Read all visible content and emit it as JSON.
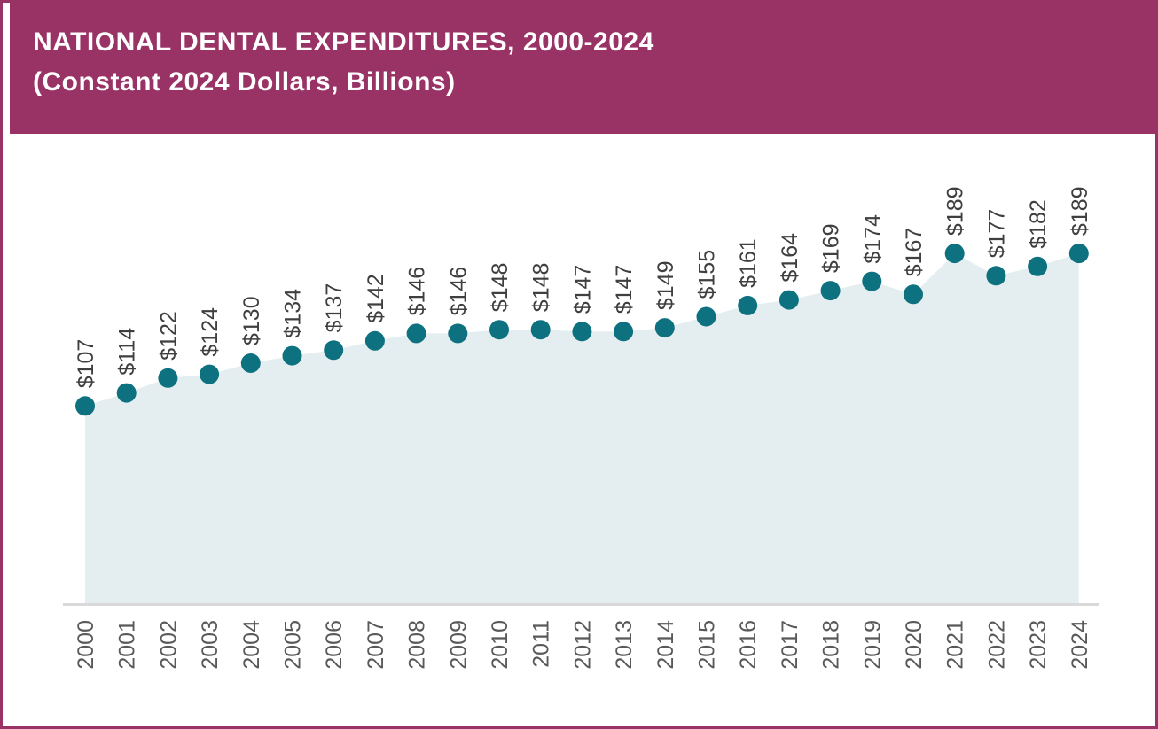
{
  "header": {
    "title_line1": "NATIONAL DENTAL EXPENDITURES, 2000-2024",
    "title_line2": "(Constant 2024 Dollars, Billions)"
  },
  "colors": {
    "maroon": "#993365",
    "dot_teal": "#0d7180",
    "area_fill": "#e4eef0",
    "axis_line": "#d9d9d9",
    "value_label_text": "#3f3f3f",
    "year_label_text": "#595959",
    "title_text": "#ffffff"
  },
  "chart_data": {
    "type": "area",
    "title": "NATIONAL DENTAL EXPENDITURES, 2000-2024",
    "subtitle": "(Constant 2024 Dollars, Billions)",
    "xlabel": "",
    "ylabel": "",
    "categories": [
      "2000",
      "2001",
      "2002",
      "2003",
      "2004",
      "2005",
      "2006",
      "2007",
      "2008",
      "2009",
      "2010",
      "2011",
      "2012",
      "2013",
      "2014",
      "2015",
      "2016",
      "2017",
      "2018",
      "2019",
      "2020",
      "2021",
      "2022",
      "2023",
      "2024"
    ],
    "values": [
      107,
      114,
      122,
      124,
      130,
      134,
      137,
      142,
      146,
      146,
      148,
      148,
      147,
      147,
      149,
      155,
      161,
      164,
      169,
      174,
      167,
      189,
      177,
      182,
      189
    ],
    "point_labels": [
      "$107",
      "$114",
      "$122",
      "$124",
      "$130",
      "$134",
      "$137",
      "$142",
      "$146",
      "$146",
      "$148",
      "$148",
      "$147",
      "$147",
      "$149",
      "$155",
      "$161",
      "$164",
      "$169",
      "$174",
      "$167",
      "$189",
      "$177",
      "$182",
      "$189"
    ],
    "ylim": [
      0,
      240
    ],
    "grid": false,
    "legend": "none",
    "marker": "circle",
    "label_rotation_degrees": -90,
    "tick_rotation_degrees": -90
  }
}
